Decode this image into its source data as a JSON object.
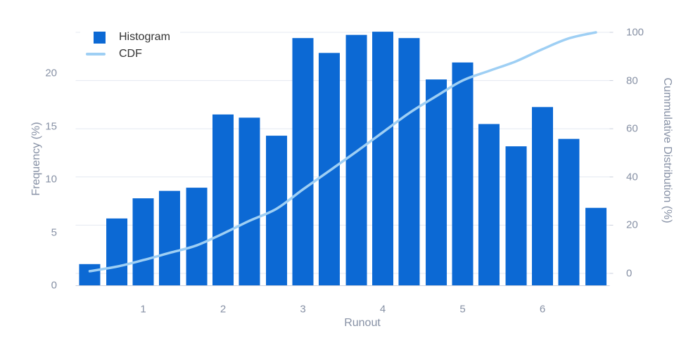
{
  "legend": {
    "histogram_label": "Histogram",
    "cdf_label": "CDF"
  },
  "axes": {
    "x_title": "Runout",
    "y_left_title": "Frequency (%)",
    "y_right_title": "Cummulative Distribution (%)",
    "x_ticks": [
      "1",
      "2",
      "3",
      "4",
      "5",
      "6"
    ],
    "y_left_ticks": [
      "0",
      "5",
      "10",
      "15",
      "20"
    ],
    "y_right_ticks": [
      "0",
      "20",
      "40",
      "60",
      "80",
      "100"
    ]
  },
  "colors": {
    "bar": "#0c69d4",
    "cdf_line": "#9ecff4",
    "gridline": "#e4e8f1",
    "axis_line": "#c9cfdc",
    "tick_label": "#8791a5",
    "axis_title": "#8791a5",
    "legend_text": "#333333"
  },
  "chart_data": {
    "type": "bar+line",
    "title": "",
    "xlabel": "Runout",
    "ylabel_left": "Frequency (%)",
    "ylabel_right": "Cummulative Distribution (%)",
    "x": [
      0.33,
      0.67,
      1.0,
      1.33,
      1.67,
      2.0,
      2.33,
      2.67,
      3.0,
      3.33,
      3.67,
      4.0,
      4.33,
      4.67,
      5.0,
      5.33,
      5.67,
      6.0,
      6.33,
      6.67
    ],
    "series": [
      {
        "name": "Histogram",
        "type": "bar",
        "axis": "left",
        "values": [
          2.0,
          6.3,
          8.2,
          8.9,
          9.2,
          16.1,
          15.8,
          14.1,
          23.3,
          21.9,
          23.6,
          23.9,
          23.3,
          19.4,
          21.0,
          15.2,
          13.1,
          16.8,
          13.8,
          7.3
        ]
      },
      {
        "name": "CDF",
        "type": "line",
        "axis": "right",
        "values": [
          0.9,
          2.8,
          5.5,
          8.5,
          11.6,
          16.5,
          21.8,
          26.8,
          34.8,
          42.5,
          50.5,
          58.5,
          66.5,
          73.5,
          80.0,
          84.0,
          88.0,
          93.0,
          97.5,
          100.0
        ]
      }
    ],
    "ylim_left": [
      0,
      20
    ],
    "ylim_right": [
      0,
      100
    ],
    "xlim": [
      0.15,
      6.87
    ],
    "grid": true,
    "legend_position": "top-left"
  }
}
